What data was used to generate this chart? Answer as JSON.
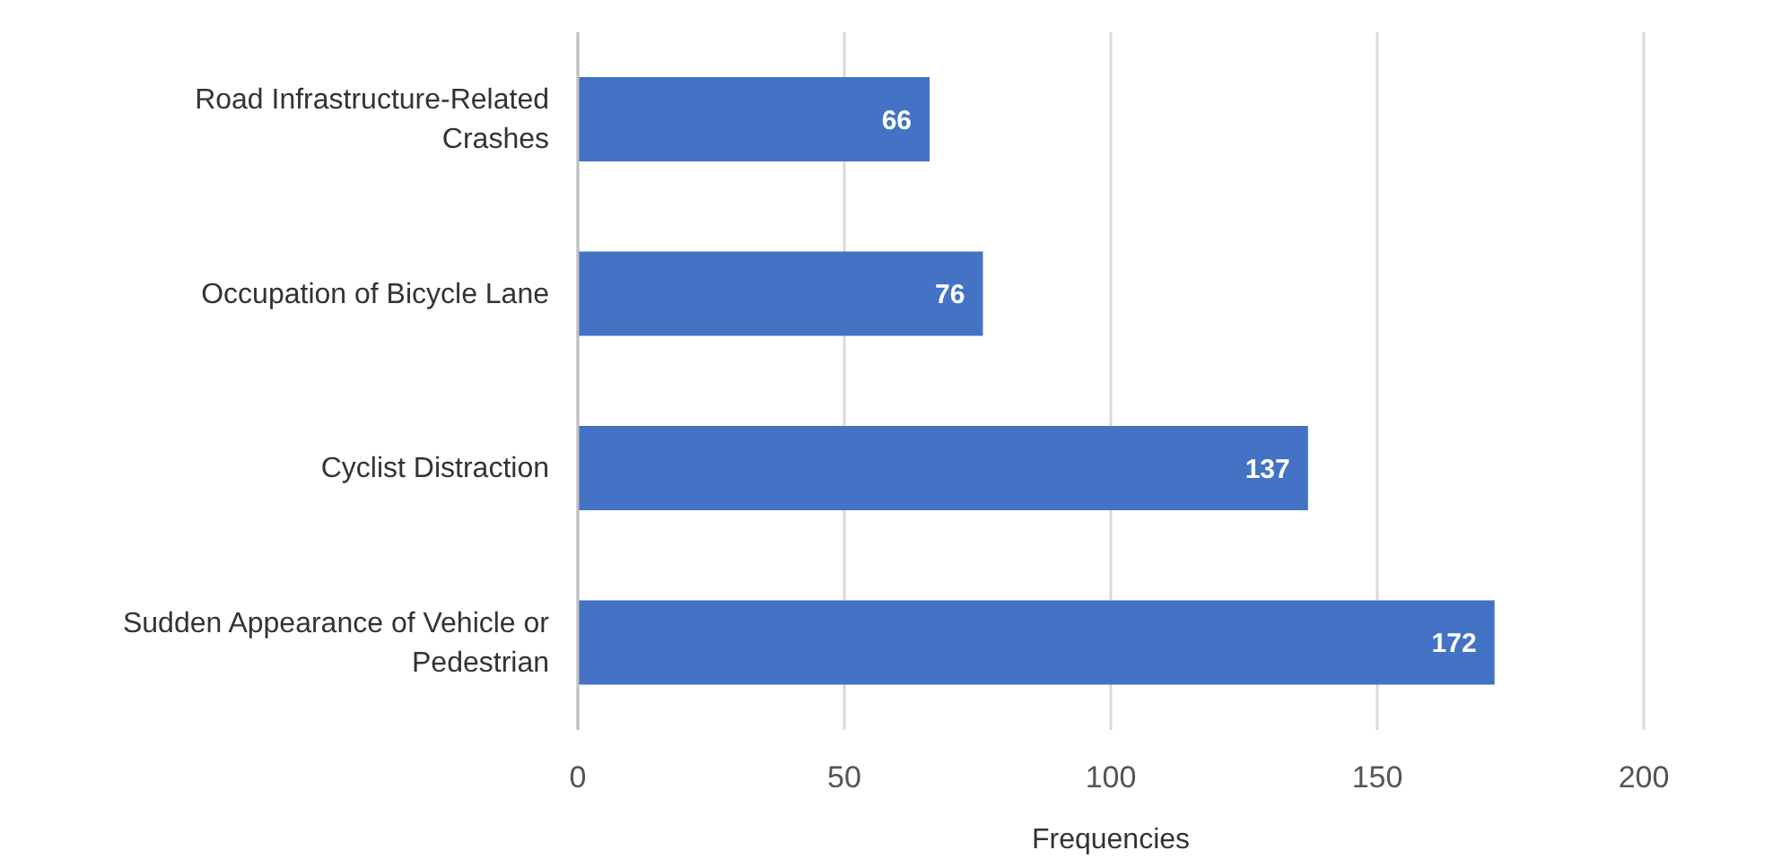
{
  "chart_data": {
    "type": "bar",
    "orientation": "horizontal",
    "categories": [
      "Road Infrastructure-Related Crashes",
      "Occupation of Bicycle Lane",
      "Cyclist Distraction",
      "Sudden Appearance of Vehicle or Pedestrian"
    ],
    "values": [
      66,
      76,
      137,
      172
    ],
    "color": "#4472c4",
    "xlim": [
      0,
      200
    ],
    "xticks": [
      0,
      50,
      100,
      150,
      200
    ],
    "xlabel": "Frequencies",
    "grid": "x",
    "data_labels": true
  }
}
